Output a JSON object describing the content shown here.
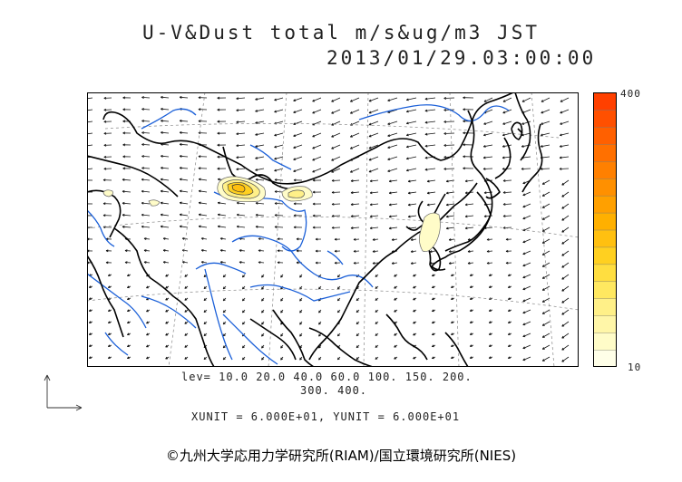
{
  "title": {
    "line1": "U-V&Dust total m/s&ug/m3 JST",
    "line2": "2013/01/29.03:00:00"
  },
  "colorbar": {
    "max_label": "400",
    "min_label": "10",
    "colors": [
      "#ffffe8",
      "#fffcc8",
      "#fff6a8",
      "#fff088",
      "#ffe860",
      "#ffde40",
      "#ffd020",
      "#ffc010",
      "#ffb000",
      "#ffa000",
      "#ff9000",
      "#ff8000",
      "#ff7000",
      "#ff6000",
      "#ff5000",
      "#ff4000"
    ]
  },
  "levels": {
    "line1": "lev= 10.0 20.0 40.0 60.0 100. 150. 200.",
    "line2": "300. 400."
  },
  "units_text": "XUNIT = 6.000E+01, YUNIT = 6.000E+01",
  "copyright": "©九州大学応用力学研究所(RIAM)/国立環境研究所(NIES)",
  "map_colors": {
    "coast": "#000000",
    "river": "#1a5fd8",
    "grid": "#888888",
    "wind": "#111111"
  }
}
